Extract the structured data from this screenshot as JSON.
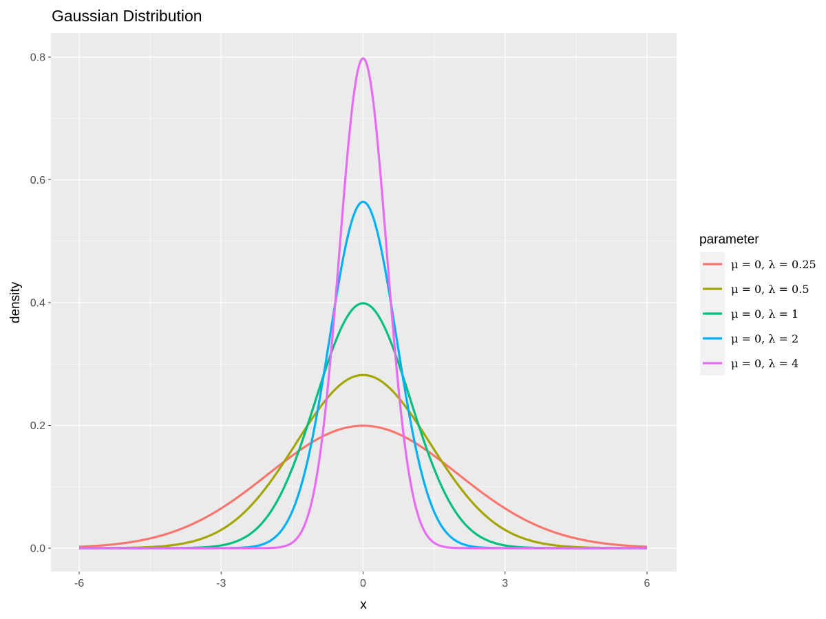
{
  "chart_data": {
    "type": "line",
    "title": "Gaussian Distribution",
    "xlabel": "x",
    "ylabel": "density",
    "xlim": [
      -6,
      6
    ],
    "ylim": [
      0,
      0.8
    ],
    "x_ticks": [
      "-6",
      "-3",
      "0",
      "3",
      "6"
    ],
    "y_ticks": [
      "0.0",
      "0.2",
      "0.4",
      "0.6",
      "0.8"
    ],
    "grid": true,
    "legend_position": "right",
    "legend_title": "parameter",
    "series": [
      {
        "name": "μ = 0, λ = 0.25",
        "mu": 0,
        "lambda": 0.25,
        "peak": 0.199,
        "color": "#F8766D"
      },
      {
        "name": "μ = 0, λ = 0.5",
        "mu": 0,
        "lambda": 0.5,
        "peak": 0.282,
        "color": "#A3A500"
      },
      {
        "name": "μ = 0, λ = 1",
        "mu": 0,
        "lambda": 1,
        "peak": 0.399,
        "color": "#00BF7D"
      },
      {
        "name": "μ = 0, λ = 2",
        "mu": 0,
        "lambda": 2,
        "peak": 0.564,
        "color": "#00B0F6"
      },
      {
        "name": "μ = 0, λ = 4",
        "mu": 0,
        "lambda": 4,
        "peak": 0.798,
        "color": "#E76BF3"
      }
    ],
    "colors": {
      "panel": "#EBEBEB",
      "grid_major": "#FFFFFF",
      "legend_key": "#F2F2F2"
    }
  }
}
